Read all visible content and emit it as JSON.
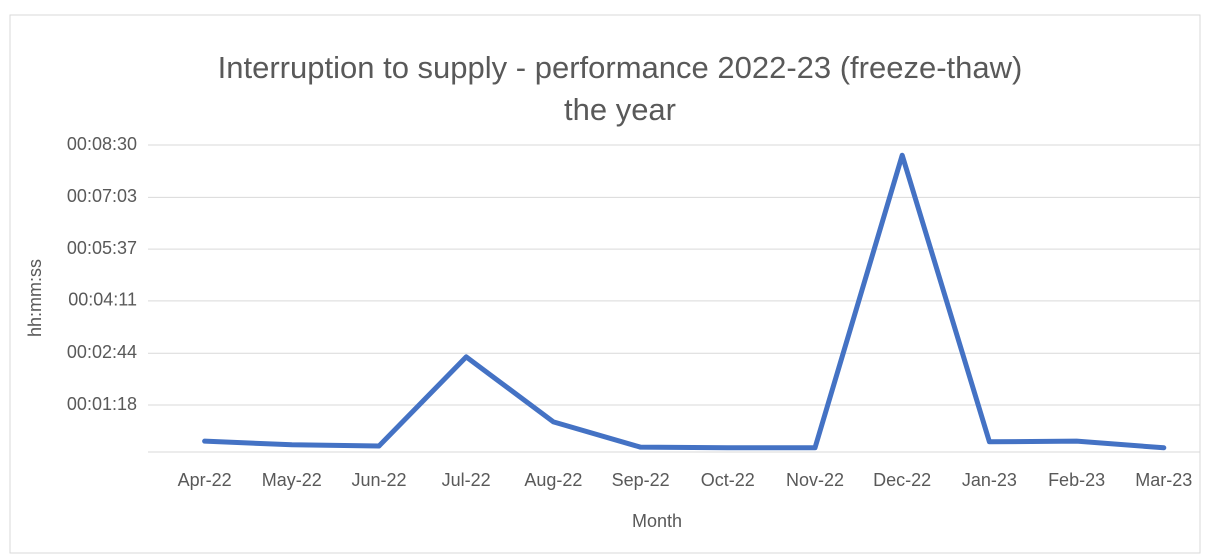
{
  "chart_data": {
    "type": "line",
    "title": [
      "Interruption to supply - performance 2022-23 (freeze-thaw)",
      "the year"
    ],
    "x_label": "Month",
    "y_label": "hh:mm:ss",
    "categories": [
      "Apr-22",
      "May-22",
      "Jun-22",
      "Jul-22",
      "Aug-22",
      "Sep-22",
      "Oct-22",
      "Nov-22",
      "Dec-22",
      "Jan-23",
      "Feb-23",
      "Mar-23"
    ],
    "series": [
      {
        "color": "#4472c4",
        "values": [
          18,
          12,
          10,
          158,
          50,
          8,
          7,
          7,
          493,
          17,
          18,
          7
        ]
      }
    ],
    "ylim": [
      0,
      510
    ],
    "yticks": [
      {
        "value": 78,
        "label": "00:01:18"
      },
      {
        "value": 164,
        "label": "00:02:44"
      },
      {
        "value": 251,
        "label": "00:04:11"
      },
      {
        "value": 337,
        "label": "00:05:37"
      },
      {
        "value": 423,
        "label": "00:07:03"
      },
      {
        "value": 510,
        "label": "00:08:30"
      }
    ],
    "grid": true
  }
}
